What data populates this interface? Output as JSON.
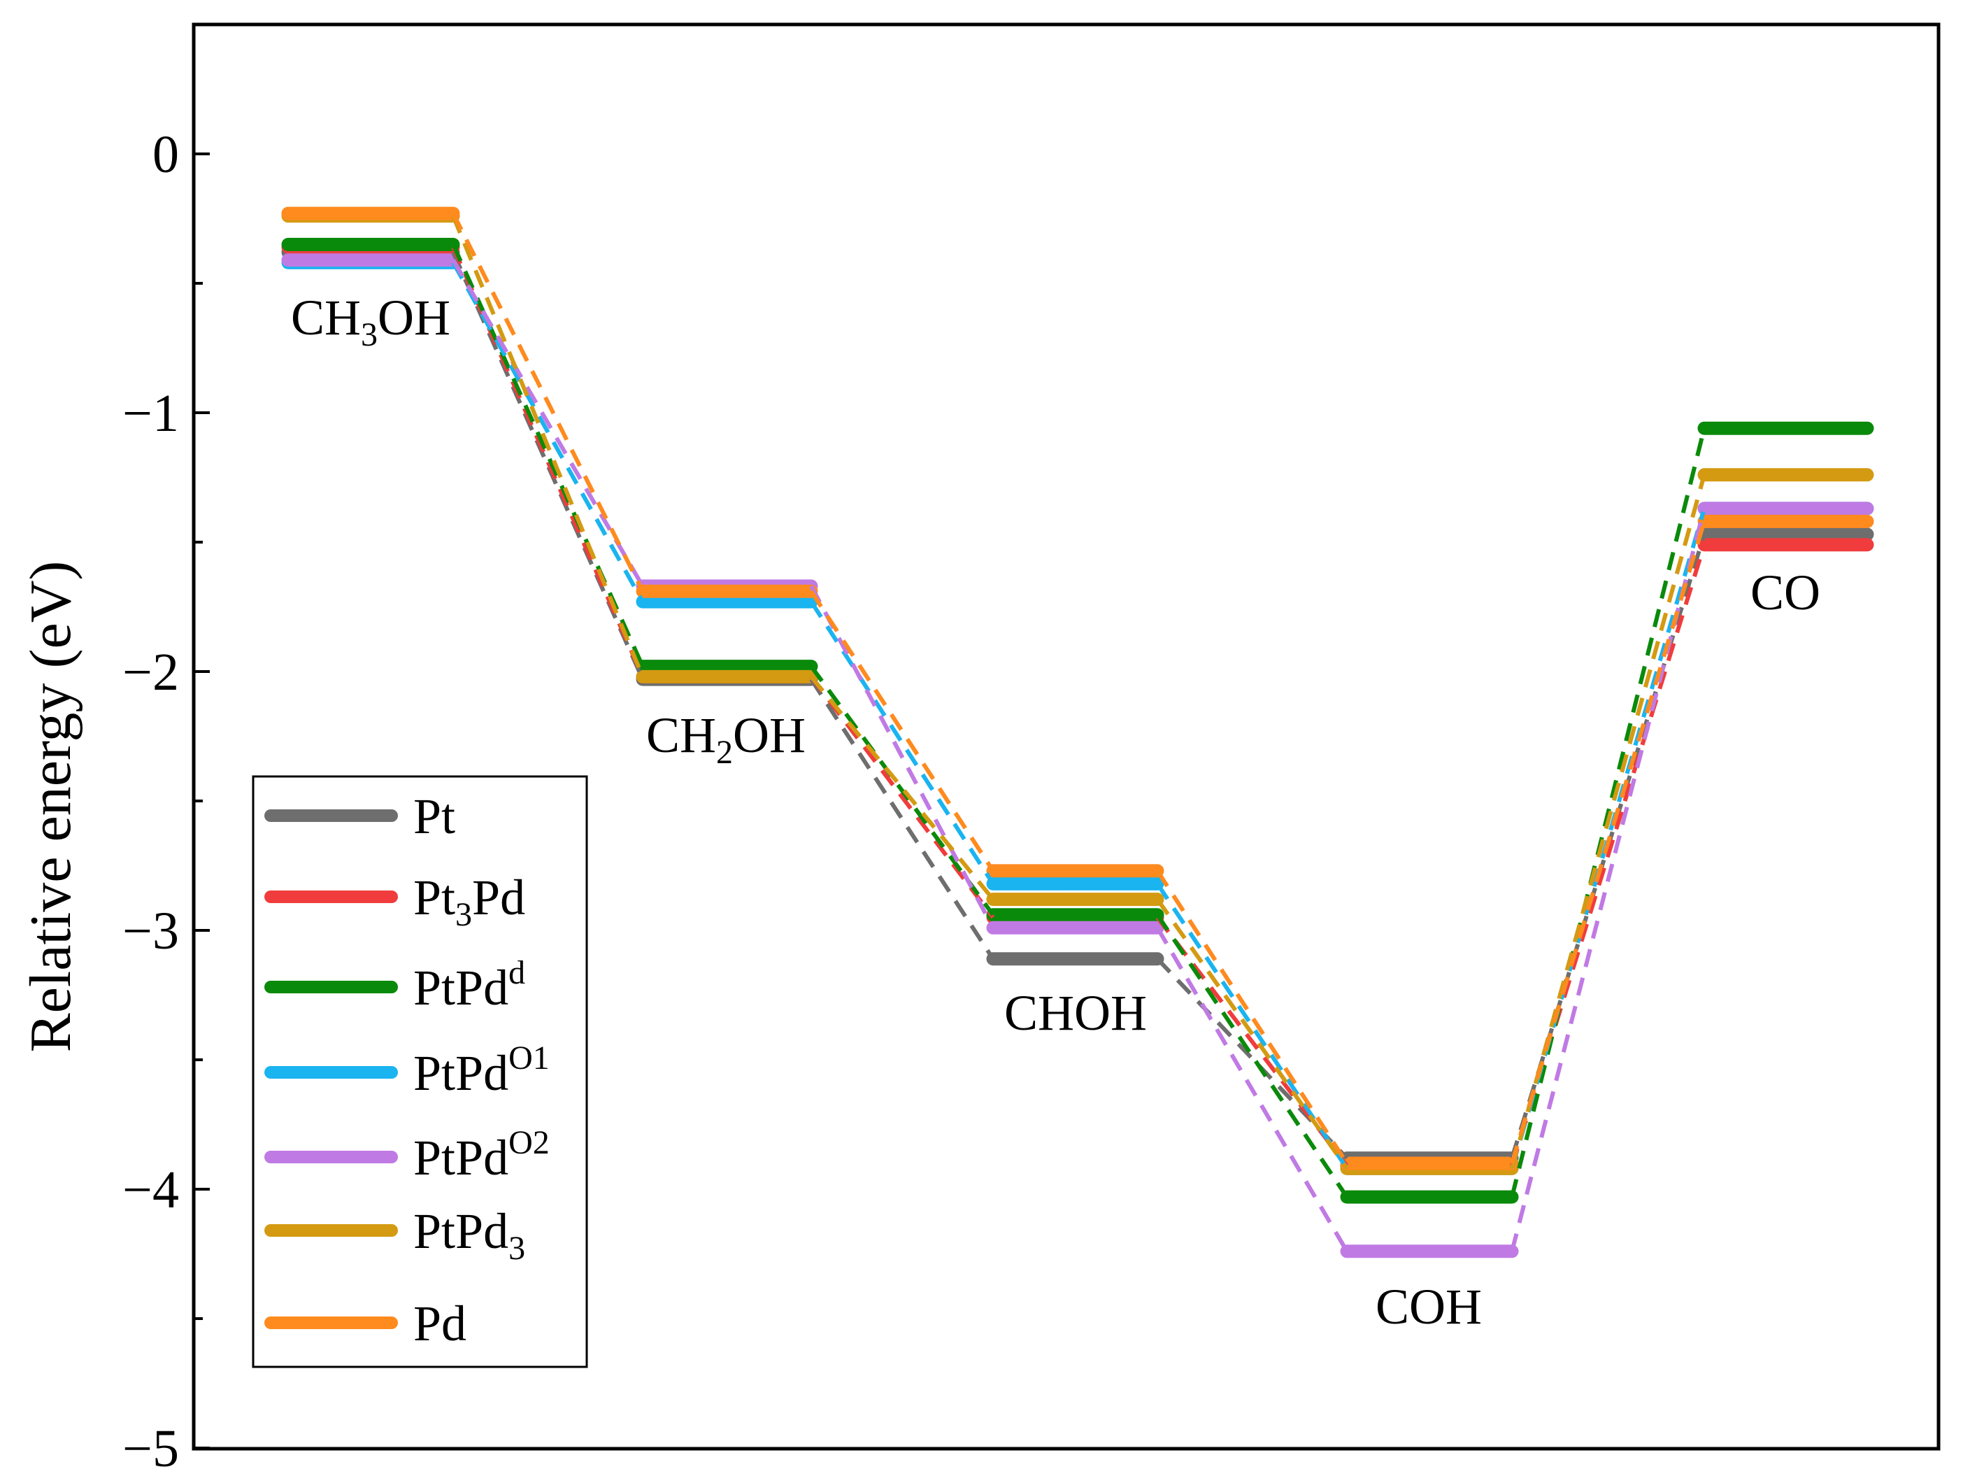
{
  "chart_data": {
    "type": "line",
    "subtype": "energy-profile",
    "title": "",
    "xlabel": "",
    "ylabel": "Relative energy (eV)",
    "ylim": [
      -5,
      0.5
    ],
    "yticks": [
      0,
      -1,
      -2,
      -3,
      -4,
      -5
    ],
    "ytick_labels": [
      "0",
      "−1",
      "−2",
      "−3",
      "−4",
      "−5"
    ],
    "minor_ticks": [
      -0.5,
      -1.5,
      -2.5,
      -3.5,
      -4.5
    ],
    "grid": false,
    "legend_position": "bottom-left",
    "categories": [
      {
        "main": "CH",
        "sub": "3",
        "tail": "OH"
      },
      {
        "main": "CH",
        "sub": "2",
        "tail": "OH"
      },
      {
        "main": "CHOH",
        "sub": "",
        "tail": ""
      },
      {
        "main": "COH",
        "sub": "",
        "tail": ""
      },
      {
        "main": "CO",
        "sub": "",
        "tail": ""
      }
    ],
    "series": [
      {
        "name": "Pt",
        "base": "Pt",
        "sub": "",
        "sup": "",
        "color": "#6e6e6e",
        "values": [
          -0.38,
          -2.03,
          -3.11,
          -3.88,
          -1.47
        ]
      },
      {
        "name": "Pt3Pd",
        "base": "Pt",
        "sub": "3",
        "sup": "",
        "tail": "Pd",
        "color": "#f03c3c",
        "values": [
          -0.36,
          -2.02,
          -2.95,
          -3.91,
          -1.51
        ]
      },
      {
        "name": "PtPdd",
        "base": "PtPd",
        "sub": "",
        "sup": "d",
        "color": "#0a8a0a",
        "values": [
          -0.35,
          -1.98,
          -2.94,
          -4.03,
          -1.06
        ]
      },
      {
        "name": "PtPdO1",
        "base": "PtPd",
        "sub": "",
        "sup": "O1",
        "color": "#1ab4f0",
        "values": [
          -0.42,
          -1.73,
          -2.82,
          -3.92,
          -1.37
        ]
      },
      {
        "name": "PtPdO2",
        "base": "PtPd",
        "sub": "",
        "sup": "O2",
        "color": "#c07ae4",
        "values": [
          -0.41,
          -1.67,
          -2.99,
          -4.24,
          -1.37
        ]
      },
      {
        "name": "PtPd3",
        "base": "PtPd",
        "sub": "3",
        "sup": "",
        "color": "#d49a12",
        "values": [
          -0.24,
          -2.02,
          -2.88,
          -3.92,
          -1.24
        ]
      },
      {
        "name": "Pd",
        "base": "Pd",
        "sub": "",
        "sup": "",
        "color": "#ff8a1e",
        "values": [
          -0.23,
          -1.69,
          -2.77,
          -3.9,
          -1.42
        ]
      }
    ]
  }
}
